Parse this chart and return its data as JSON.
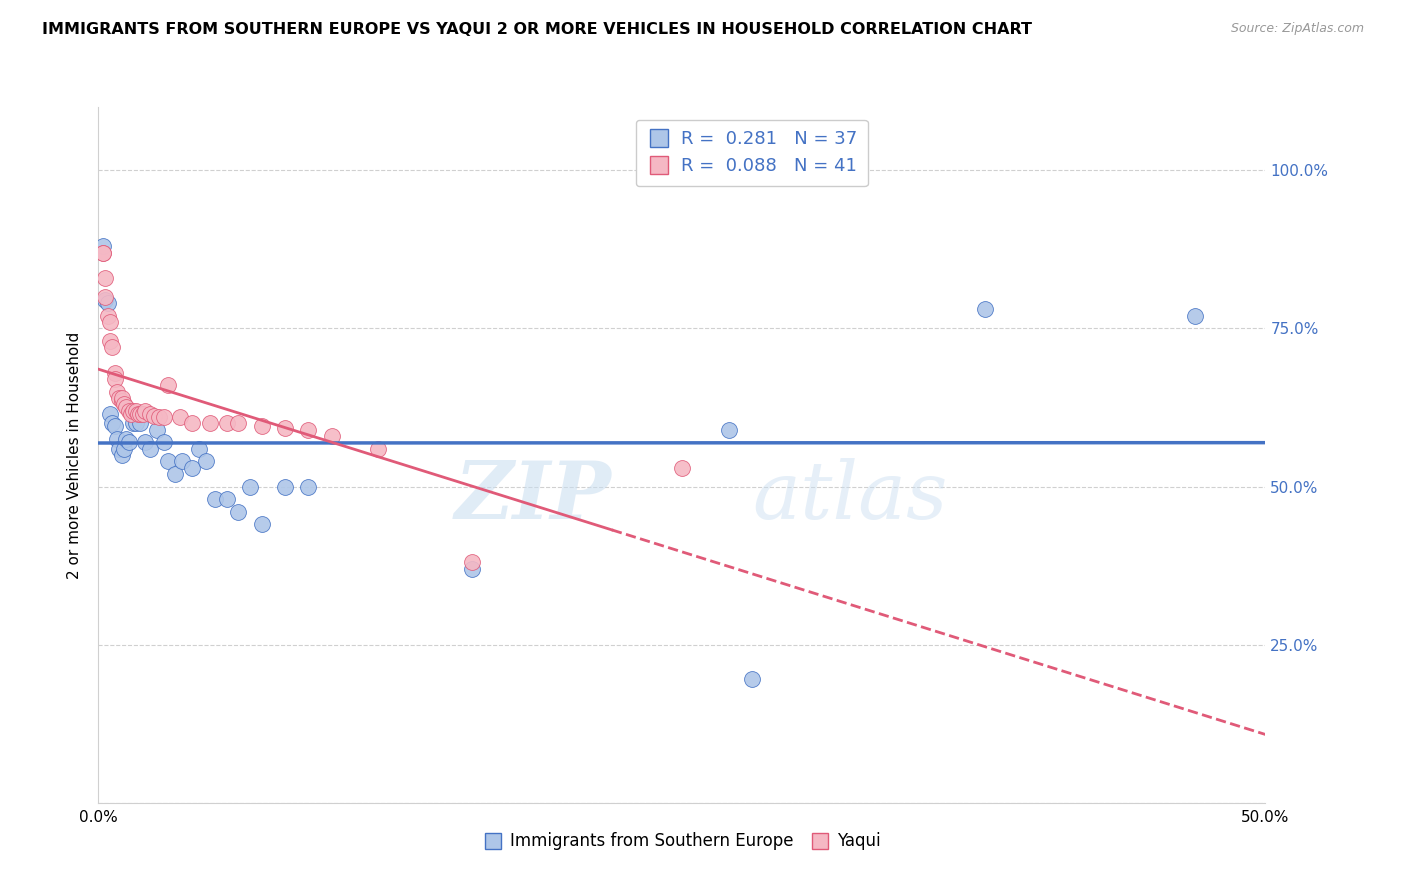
{
  "title": "IMMIGRANTS FROM SOUTHERN EUROPE VS YAQUI 2 OR MORE VEHICLES IN HOUSEHOLD CORRELATION CHART",
  "source": "Source: ZipAtlas.com",
  "ylabel": "2 or more Vehicles in Household",
  "xmin": 0.0,
  "xmax": 0.5,
  "ymin": 0.0,
  "ymax": 1.1,
  "yticks": [
    0.0,
    0.25,
    0.5,
    0.75,
    1.0
  ],
  "ytick_labels": [
    "",
    "25.0%",
    "50.0%",
    "75.0%",
    "100.0%"
  ],
  "xticks": [
    0.0,
    0.5
  ],
  "xtick_labels": [
    "0.0%",
    "50.0%"
  ],
  "blue_R": 0.281,
  "blue_N": 37,
  "pink_R": 0.088,
  "pink_N": 41,
  "blue_color": "#aec6e8",
  "blue_edge_color": "#4472c4",
  "pink_color": "#f5b8c4",
  "pink_edge_color": "#e05a78",
  "legend_label_blue": "Immigrants from Southern Europe",
  "legend_label_pink": "Yaqui",
  "watermark_zip": "ZIP",
  "watermark_atlas": "atlas",
  "blue_x": [
    0.002,
    0.003,
    0.004,
    0.005,
    0.006,
    0.007,
    0.008,
    0.009,
    0.01,
    0.011,
    0.012,
    0.013,
    0.015,
    0.016,
    0.018,
    0.02,
    0.022,
    0.025,
    0.028,
    0.03,
    0.033,
    0.036,
    0.04,
    0.043,
    0.046,
    0.05,
    0.055,
    0.06,
    0.065,
    0.07,
    0.08,
    0.09,
    0.16,
    0.27,
    0.38,
    0.47,
    0.28
  ],
  "blue_y": [
    0.88,
    0.795,
    0.79,
    0.615,
    0.6,
    0.595,
    0.575,
    0.56,
    0.55,
    0.56,
    0.575,
    0.57,
    0.6,
    0.6,
    0.6,
    0.57,
    0.56,
    0.59,
    0.57,
    0.54,
    0.52,
    0.54,
    0.53,
    0.56,
    0.54,
    0.48,
    0.48,
    0.46,
    0.5,
    0.44,
    0.5,
    0.5,
    0.37,
    0.59,
    0.78,
    0.77,
    0.195
  ],
  "pink_x": [
    0.002,
    0.002,
    0.003,
    0.003,
    0.004,
    0.005,
    0.005,
    0.006,
    0.007,
    0.007,
    0.008,
    0.009,
    0.01,
    0.01,
    0.011,
    0.012,
    0.013,
    0.014,
    0.015,
    0.016,
    0.017,
    0.018,
    0.019,
    0.02,
    0.022,
    0.024,
    0.026,
    0.028,
    0.03,
    0.035,
    0.04,
    0.048,
    0.055,
    0.06,
    0.07,
    0.08,
    0.09,
    0.1,
    0.12,
    0.16,
    0.25
  ],
  "pink_y": [
    0.87,
    0.87,
    0.83,
    0.8,
    0.77,
    0.76,
    0.73,
    0.72,
    0.68,
    0.67,
    0.65,
    0.64,
    0.635,
    0.64,
    0.63,
    0.625,
    0.62,
    0.615,
    0.62,
    0.62,
    0.615,
    0.615,
    0.615,
    0.62,
    0.615,
    0.612,
    0.61,
    0.61,
    0.66,
    0.61,
    0.6,
    0.6,
    0.6,
    0.6,
    0.596,
    0.592,
    0.59,
    0.58,
    0.56,
    0.38,
    0.53
  ]
}
